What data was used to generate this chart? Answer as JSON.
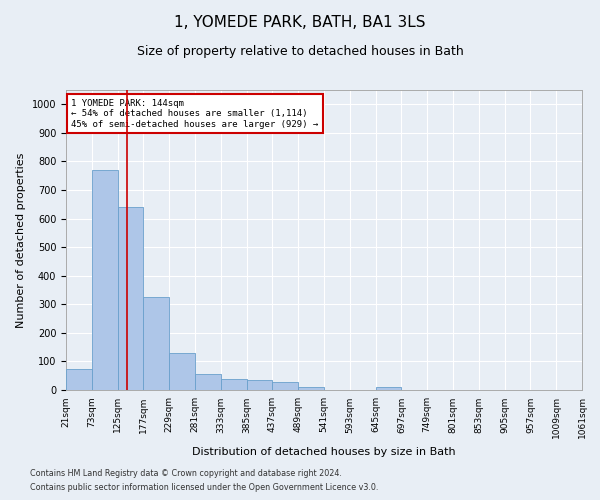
{
  "title": "1, YOMEDE PARK, BATH, BA1 3LS",
  "subtitle": "Size of property relative to detached houses in Bath",
  "xlabel": "Distribution of detached houses by size in Bath",
  "ylabel": "Number of detached properties",
  "bar_edges": [
    21,
    73,
    125,
    177,
    229,
    281,
    333,
    385,
    437,
    489,
    541,
    593,
    645,
    697,
    749,
    801,
    853,
    905,
    957,
    1009,
    1061
  ],
  "bar_heights": [
    75,
    770,
    640,
    325,
    130,
    55,
    40,
    35,
    28,
    10,
    0,
    0,
    12,
    0,
    0,
    0,
    0,
    0,
    0,
    0
  ],
  "bar_color": "#aec6e8",
  "bar_edge_color": "#6aa0cc",
  "vline_x": 144,
  "vline_color": "#cc0000",
  "annotation_line1": "1 YOMEDE PARK: 144sqm",
  "annotation_line2": "← 54% of detached houses are smaller (1,114)",
  "annotation_line3": "45% of semi-detached houses are larger (929) →",
  "annotation_box_color": "#cc0000",
  "ylim": [
    0,
    1050
  ],
  "yticks": [
    0,
    100,
    200,
    300,
    400,
    500,
    600,
    700,
    800,
    900,
    1000
  ],
  "xlim": [
    21,
    1061
  ],
  "footer_line1": "Contains HM Land Registry data © Crown copyright and database right 2024.",
  "footer_line2": "Contains public sector information licensed under the Open Government Licence v3.0.",
  "background_color": "#e8eef5",
  "plot_bg_color": "#e8eef5",
  "title_fontsize": 11,
  "subtitle_fontsize": 9,
  "label_fontsize": 8,
  "tick_fontsize": 6.5,
  "tick_labels": [
    "21sqm",
    "73sqm",
    "125sqm",
    "177sqm",
    "229sqm",
    "281sqm",
    "333sqm",
    "385sqm",
    "437sqm",
    "489sqm",
    "541sqm",
    "593sqm",
    "645sqm",
    "697sqm",
    "749sqm",
    "801sqm",
    "853sqm",
    "905sqm",
    "957sqm",
    "1009sqm",
    "1061sqm"
  ]
}
